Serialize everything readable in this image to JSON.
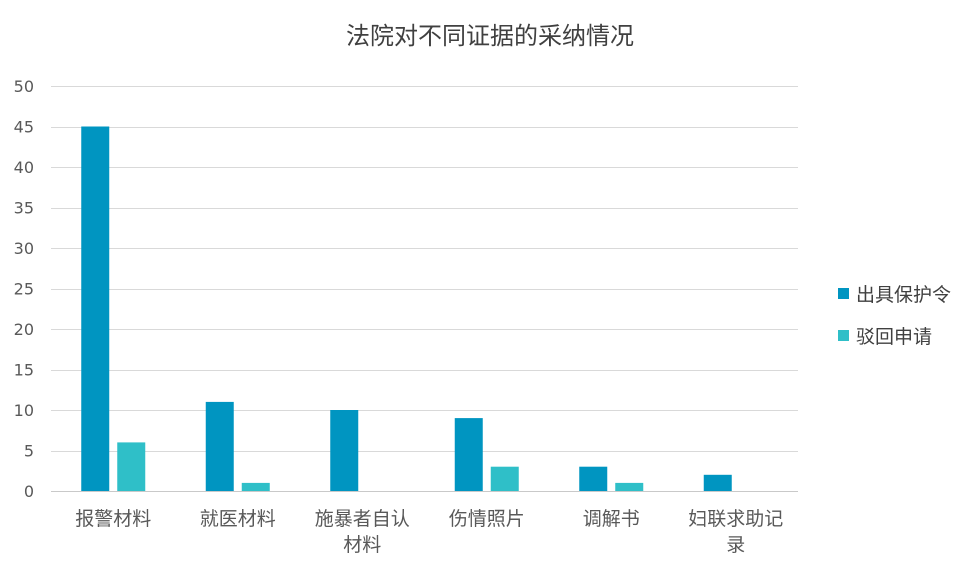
{
  "chart_data": {
    "type": "bar",
    "title": "法院对不同证据的采纳情况",
    "xlabel": "",
    "ylabel": "",
    "ylim": [
      0,
      50
    ],
    "yticks": [
      0,
      5,
      10,
      15,
      20,
      25,
      30,
      35,
      40,
      45,
      50
    ],
    "grid": true,
    "legend_position": "right",
    "categories": [
      "报警材料",
      "就医材料",
      "施暴者自认材料",
      "伤情照片",
      "调解书",
      "妇联求助记录"
    ],
    "category_lines": [
      [
        "报警材料"
      ],
      [
        "就医材料"
      ],
      [
        "施暴者自认",
        "材料"
      ],
      [
        "伤情照片"
      ],
      [
        "调解书"
      ],
      [
        "妇联求助记",
        "录"
      ]
    ],
    "series": [
      {
        "name": "出具保护令",
        "color": "#0095C1",
        "values": [
          45,
          11,
          10,
          9,
          3,
          2
        ]
      },
      {
        "name": "驳回申请",
        "color": "#2FBFC8",
        "values": [
          6,
          1,
          0,
          3,
          1,
          0
        ]
      }
    ]
  }
}
